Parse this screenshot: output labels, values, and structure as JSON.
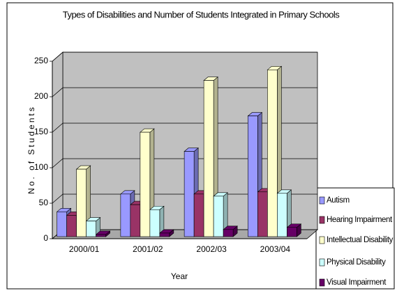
{
  "chart_data": {
    "type": "bar3d",
    "title": "Types of Disabilities and Number of Students Integrated in Primary Schools",
    "x_label": "Year",
    "y_label": "No. of Students",
    "categories": [
      "2000/01",
      "2001/02",
      "2002/03",
      "2003/04"
    ],
    "series": [
      {
        "name": "Autism",
        "color": "#9999ff",
        "values": [
          35,
          60,
          120,
          170
        ]
      },
      {
        "name": "Hearing Impairment",
        "color": "#993366",
        "values": [
          30,
          45,
          60,
          63
        ]
      },
      {
        "name": "Intellectual Disability",
        "color": "#ffffcc",
        "values": [
          95,
          147,
          220,
          235
        ]
      },
      {
        "name": "Physical Disability",
        "color": "#ccffff",
        "values": [
          22,
          38,
          57,
          61
        ]
      },
      {
        "name": "Visual Impairment",
        "color": "#660066",
        "values": [
          3,
          5,
          10,
          13
        ]
      }
    ],
    "ylim": [
      0,
      250
    ],
    "yticks": [
      0,
      50,
      100,
      150,
      200,
      250
    ],
    "grid": true,
    "legend": "right"
  }
}
